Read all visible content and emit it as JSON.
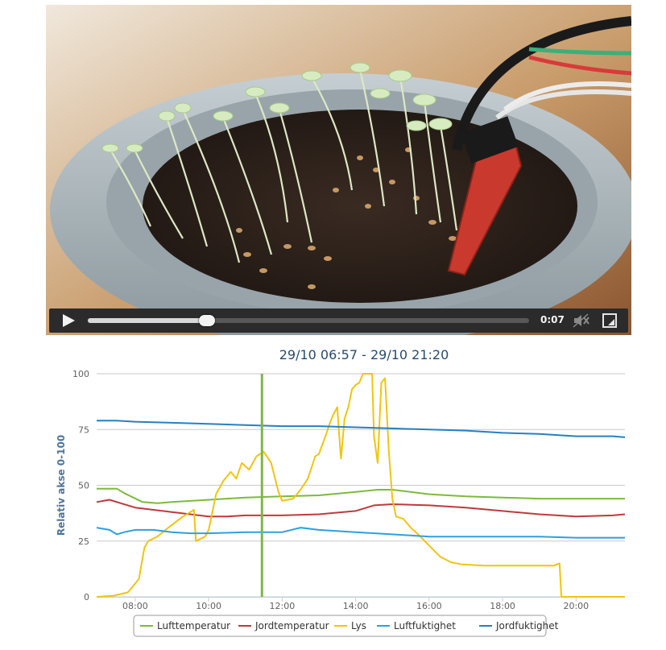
{
  "video": {
    "current_time": "0:07",
    "progress_fraction": 0.27,
    "controls": {
      "play_icon": "play-icon",
      "mute_icon": "speaker-muted-icon",
      "fullscreen_icon": "fullscreen-icon"
    }
  },
  "chart_data": {
    "type": "line",
    "title": "29/10 06:57 - 29/10 21:20",
    "ylabel": "Relativ akse 0-100",
    "xlabel": "",
    "xlim": [
      6.95,
      21.33
    ],
    "ylim": [
      0,
      100
    ],
    "y_ticks": [
      "0",
      "25",
      "50",
      "75",
      "100"
    ],
    "y_tick_values": [
      0,
      25,
      50,
      75,
      100
    ],
    "x_ticks": [
      "08:00",
      "10:00",
      "12:00",
      "14:00",
      "16:00",
      "18:00",
      "20:00"
    ],
    "x_tick_values": [
      8,
      10,
      12,
      14,
      16,
      18,
      20
    ],
    "marker_line_x": 11.45,
    "legend_position": "bottom-center",
    "series": [
      {
        "name": "Lufttemperatur",
        "color": "#7cba3d",
        "x": [
          6.95,
          7.5,
          7.7,
          8.2,
          8.6,
          9.0,
          10.0,
          11.0,
          12.0,
          13.0,
          14.0,
          14.6,
          15.0,
          15.5,
          16.0,
          17.0,
          18.0,
          19.0,
          20.0,
          21.0,
          21.33
        ],
        "y": [
          48.5,
          48.5,
          46.5,
          42.5,
          42.0,
          42.5,
          43.5,
          44.5,
          45.0,
          45.5,
          47.0,
          48.0,
          48.0,
          47.0,
          46.0,
          45.0,
          44.5,
          44.0,
          44.0,
          44.0,
          44.0
        ]
      },
      {
        "name": "Jordtemperatur",
        "color": "#c0393b",
        "x": [
          6.95,
          7.3,
          7.6,
          8.0,
          8.5,
          9.0,
          9.5,
          10.0,
          10.5,
          11.0,
          12.0,
          13.0,
          14.0,
          14.5,
          15.0,
          16.0,
          17.0,
          18.0,
          19.0,
          20.0,
          21.0,
          21.33
        ],
        "y": [
          42.5,
          43.5,
          42.0,
          40.0,
          39.0,
          38.0,
          37.0,
          36.0,
          36.0,
          36.5,
          36.5,
          37.0,
          38.5,
          41.0,
          41.5,
          41.0,
          40.0,
          38.5,
          37.0,
          36.0,
          36.5,
          37.0
        ]
      },
      {
        "name": "Lys",
        "color": "#f2c40f",
        "x": [
          6.95,
          7.4,
          7.8,
          8.1,
          8.25,
          8.35,
          8.6,
          8.9,
          9.3,
          9.6,
          9.65,
          9.9,
          10.0,
          10.2,
          10.4,
          10.6,
          10.75,
          10.9,
          11.1,
          11.3,
          11.5,
          11.7,
          11.9,
          12.0,
          12.3,
          12.5,
          12.7,
          12.9,
          13.0,
          13.2,
          13.3,
          13.4,
          13.5,
          13.55,
          13.6,
          13.7,
          13.8,
          13.9,
          14.0,
          14.1,
          14.2,
          14.3,
          14.45,
          14.5,
          14.6,
          14.7,
          14.8,
          14.9,
          15.0,
          15.1,
          15.3,
          15.5,
          15.7,
          16.0,
          16.3,
          16.6,
          16.9,
          17.5,
          18.0,
          19.0,
          19.4,
          19.55,
          19.6,
          20.0,
          21.0,
          21.33
        ],
        "y": [
          0,
          0.5,
          2,
          8,
          22,
          25,
          27,
          31,
          36,
          39,
          25,
          27,
          30,
          46,
          52,
          56,
          53,
          60,
          57,
          63,
          65,
          60,
          47,
          43,
          44,
          48,
          53,
          63,
          64,
          73,
          78,
          82,
          85,
          73,
          62,
          80,
          85,
          93,
          95,
          96,
          100,
          100,
          100,
          72,
          60,
          96,
          98,
          66,
          44,
          36,
          35,
          31,
          28,
          23,
          18,
          15.5,
          14.5,
          14,
          14,
          14,
          14,
          15,
          0,
          0,
          0,
          0
        ]
      },
      {
        "name": "Luftfuktighet",
        "color": "#2ea0de",
        "x": [
          6.95,
          7.3,
          7.5,
          7.7,
          8.0,
          8.5,
          9.0,
          9.5,
          10.0,
          11.0,
          11.5,
          12.0,
          12.5,
          13.0,
          14.0,
          15.0,
          15.5,
          16.0,
          17.0,
          18.0,
          19.0,
          20.0,
          21.0,
          21.33
        ],
        "y": [
          31,
          30,
          28,
          29,
          30,
          30,
          29,
          28.5,
          28.5,
          29,
          29,
          29,
          31,
          30,
          29,
          28,
          27.5,
          27,
          27,
          27,
          27,
          26.5,
          26.5,
          26.5
        ]
      },
      {
        "name": "Jordfuktighet",
        "color": "#2680c2",
        "x": [
          6.95,
          7.5,
          8.0,
          9.0,
          10.0,
          11.0,
          12.0,
          13.0,
          14.0,
          15.0,
          16.0,
          17.0,
          18.0,
          19.0,
          20.0,
          21.0,
          21.33
        ],
        "y": [
          79,
          79,
          78.5,
          78,
          77.5,
          77,
          76.5,
          76.5,
          76,
          75.5,
          75,
          74.5,
          73.5,
          73,
          72,
          72,
          71.5
        ]
      }
    ]
  }
}
